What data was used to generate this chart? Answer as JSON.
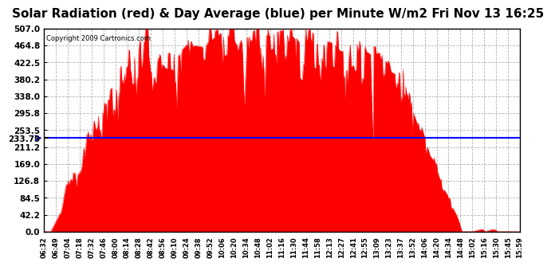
{
  "title": "Solar Radiation (red) & Day Average (blue) per Minute W/m2 Fri Nov 13 16:25",
  "copyright": "Copyright 2009 Cartronics.com",
  "avg_value": 233.79,
  "y_ticks": [
    0.0,
    42.2,
    84.5,
    126.8,
    169.0,
    211.2,
    253.5,
    295.8,
    338.0,
    380.2,
    422.5,
    464.8,
    507.0
  ],
  "y_max": 507.0,
  "y_min": 0.0,
  "x_tick_labels": [
    "06:32",
    "06:49",
    "07:04",
    "07:18",
    "07:32",
    "07:46",
    "08:00",
    "08:14",
    "08:28",
    "08:42",
    "08:56",
    "09:10",
    "09:24",
    "09:38",
    "09:52",
    "10:06",
    "10:20",
    "10:34",
    "10:48",
    "11:02",
    "11:16",
    "11:30",
    "11:44",
    "11:58",
    "12:13",
    "12:27",
    "12:41",
    "12:55",
    "13:09",
    "13:23",
    "13:37",
    "13:52",
    "14:06",
    "14:20",
    "14:34",
    "14:48",
    "15:02",
    "15:16",
    "15:30",
    "15:45",
    "15:59"
  ],
  "fill_color": "#FF0000",
  "line_color": "#0000FF",
  "background_color": "#FFFFFF",
  "grid_color": "#AAAAAA",
  "title_fontsize": 11,
  "label_color": "#000000"
}
